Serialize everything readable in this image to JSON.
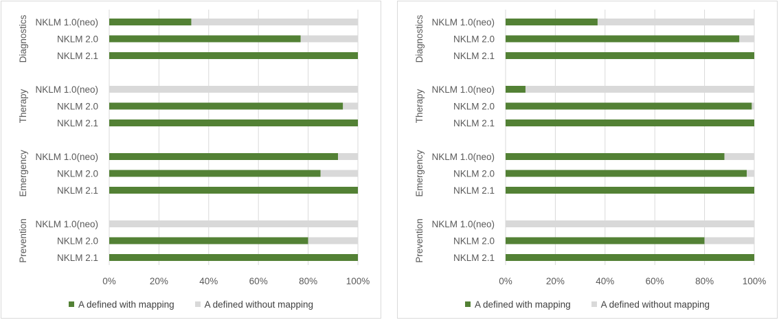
{
  "chart_data": [
    {
      "type": "bar",
      "orientation": "horizontal",
      "stacked": "percent",
      "groups": [
        {
          "name": "Diagnostics",
          "categories": [
            "NKLM 1.0(neo)",
            "NKLM 2.0",
            "NKLM 2.1"
          ]
        },
        {
          "name": "Therapy",
          "categories": [
            "NKLM 1.0(neo)",
            "NKLM 2.0",
            "NKLM 2.1"
          ]
        },
        {
          "name": "Emergency",
          "categories": [
            "NKLM 1.0(neo)",
            "NKLM 2.0",
            "NKLM 2.1"
          ]
        },
        {
          "name": "Prevention",
          "categories": [
            "NKLM 1.0(neo)",
            "NKLM 2.0",
            "NKLM 2.1"
          ]
        }
      ],
      "series": [
        {
          "name": "A defined with mapping",
          "color": "#538135",
          "values": [
            33,
            77,
            100,
            0,
            94,
            100,
            92,
            85,
            100,
            0,
            80,
            100
          ]
        },
        {
          "name": "A defined without mapping",
          "color": "#d9d9d9",
          "values": [
            67,
            23,
            0,
            100,
            6,
            0,
            8,
            15,
            0,
            100,
            20,
            0
          ]
        }
      ],
      "xlim": [
        0,
        100
      ],
      "x_ticks": [
        "0%",
        "20%",
        "40%",
        "60%",
        "80%",
        "100%"
      ],
      "grid": true,
      "legend_position": "bottom"
    },
    {
      "type": "bar",
      "orientation": "horizontal",
      "stacked": "percent",
      "groups": [
        {
          "name": "Diagnostics",
          "categories": [
            "NKLM 1.0(neo)",
            "NKLM 2.0",
            "NKLM 2.1"
          ]
        },
        {
          "name": "Therapy",
          "categories": [
            "NKLM 1.0(neo)",
            "NKLM 2.0",
            "NKLM 2.1"
          ]
        },
        {
          "name": "Emergency",
          "categories": [
            "NKLM 1.0(neo)",
            "NKLM 2.0",
            "NKLM 2.1"
          ]
        },
        {
          "name": "Prevention",
          "categories": [
            "NKLM 1.0(neo)",
            "NKLM 2.0",
            "NKLM 2.1"
          ]
        }
      ],
      "series": [
        {
          "name": "A defined with mapping",
          "color": "#538135",
          "values": [
            37,
            94,
            100,
            8,
            99,
            100,
            88,
            97,
            100,
            0,
            80,
            100
          ]
        },
        {
          "name": "A defined without mapping",
          "color": "#d9d9d9",
          "values": [
            63,
            6,
            0,
            92,
            1,
            0,
            12,
            3,
            0,
            100,
            20,
            0
          ]
        }
      ],
      "xlim": [
        0,
        100
      ],
      "x_ticks": [
        "0%",
        "20%",
        "40%",
        "60%",
        "80%",
        "100%"
      ],
      "grid": true,
      "legend_position": "bottom"
    }
  ]
}
